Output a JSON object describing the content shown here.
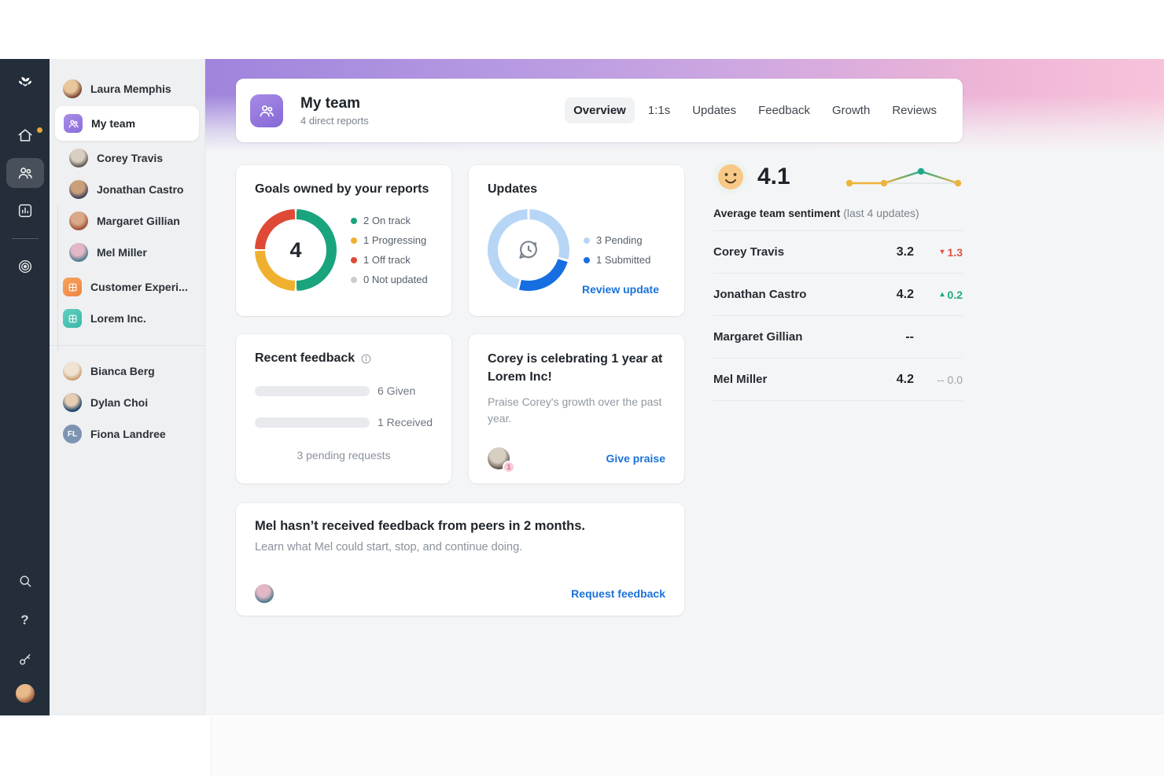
{
  "colors": {
    "rail_bg": "#232e3a",
    "sidebar_bg": "#eef0f2",
    "main_bg": "#f4f5f6",
    "hero_purple": "#9f84dc",
    "hero_pink": "#f7c3da",
    "accent_purple": "#8a6cd8",
    "link_blue": "#1b72d9",
    "bar_blue": "#2e7ce4",
    "green": "#19a47e",
    "yellow": "#f0b02f",
    "red": "#de4a35",
    "gray_dot": "#c9cdd2",
    "pending_lightblue": "#b7d6f6",
    "submitted_blue": "#176ee0",
    "notification_orange": "#e8a33d"
  },
  "sidebar": {
    "manager": {
      "name": "Laura Memphis"
    },
    "team": {
      "label": "My team"
    },
    "reports": [
      {
        "name": "Corey Travis"
      },
      {
        "name": "Jonathan Castro"
      },
      {
        "name": "Margaret Gillian"
      },
      {
        "name": "Mel Miller"
      }
    ],
    "orgs": [
      {
        "name": "Customer Experi..."
      },
      {
        "name": "Lorem Inc."
      }
    ],
    "peers": [
      {
        "name": "Bianca Berg"
      },
      {
        "name": "Dylan Choi"
      },
      {
        "name": "Fiona Landree",
        "initials": "FL"
      }
    ]
  },
  "header": {
    "title": "My team",
    "subtitle": "4 direct reports",
    "tabs": [
      "Overview",
      "1:1s",
      "Updates",
      "Feedback",
      "Growth",
      "Reviews"
    ]
  },
  "goals": {
    "title": "Goals owned by your reports",
    "total": "4",
    "legend": [
      "2 On track",
      "1 Progressing",
      "1 Off track",
      "0 Not updated"
    ]
  },
  "updates": {
    "title": "Updates",
    "legend": [
      "3 Pending",
      "1 Submitted"
    ],
    "link": "Review update"
  },
  "sentiment": {
    "score": "4.1",
    "label_bold": "Average team sentiment",
    "label_rest": " (last 4 updates)",
    "rows": [
      {
        "name": "Corey Travis",
        "score": "3.2",
        "change": "1.3",
        "dir": "down",
        "dash": ""
      },
      {
        "name": "Jonathan Castro",
        "score": "4.2",
        "change": "0.2",
        "dir": "up",
        "dash": ""
      },
      {
        "name": "Margaret Gillian",
        "score": "--",
        "change": "",
        "dir": "none",
        "dash": ""
      },
      {
        "name": "Mel Miller",
        "score": "4.2",
        "change": "0.0",
        "dir": "flat",
        "dash": "--"
      }
    ]
  },
  "feedback": {
    "title": "Recent feedback",
    "bars": [
      {
        "label": "6 Given",
        "width_css": "75%"
      },
      {
        "label": "1 Received",
        "width_css": "13%"
      }
    ],
    "footer": "3 pending requests"
  },
  "celebration": {
    "title": "Corey is celebrating 1 year at Lorem Inc!",
    "body": "Praise Corey's growth over the past year.",
    "badge": "1",
    "link": "Give praise"
  },
  "banner": {
    "title": "Mel hasn’t received feedback from peers in 2 months.",
    "body": "Learn what Mel could start, stop, and continue doing.",
    "link": "Request feedback"
  },
  "chart_data": [
    {
      "type": "pie",
      "subtype": "donut",
      "title": "Goals owned by your reports",
      "center_label": 4,
      "slices": [
        {
          "label": "On track",
          "value": 2,
          "color": "#19a47e"
        },
        {
          "label": "Progressing",
          "value": 1,
          "color": "#f0b02f"
        },
        {
          "label": "Off track",
          "value": 1,
          "color": "#de4a35"
        },
        {
          "label": "Not updated",
          "value": 0,
          "color": "#c9cdd2"
        }
      ]
    },
    {
      "type": "pie",
      "subtype": "donut",
      "title": "Updates",
      "slices": [
        {
          "label": "Pending",
          "value": 3,
          "color": "#b7d6f6"
        },
        {
          "label": "Submitted",
          "value": 1,
          "color": "#176ee0"
        }
      ]
    },
    {
      "type": "line",
      "title": "Average team sentiment (last 4 updates)",
      "x": [
        1,
        2,
        3,
        4
      ],
      "y_estimated": [
        4.0,
        4.0,
        4.5,
        4.0
      ],
      "average": 4.1,
      "point_colors": [
        "#eeb33b",
        "#eeb33b",
        "#1fa98c",
        "#eeb33b"
      ],
      "legend_position": "none",
      "grid": false
    },
    {
      "type": "bar",
      "title": "Recent feedback",
      "categories": [
        "Given",
        "Received"
      ],
      "values": [
        6,
        1
      ],
      "note": "3 pending requests",
      "bar_color": "#2e7ce4"
    }
  ]
}
